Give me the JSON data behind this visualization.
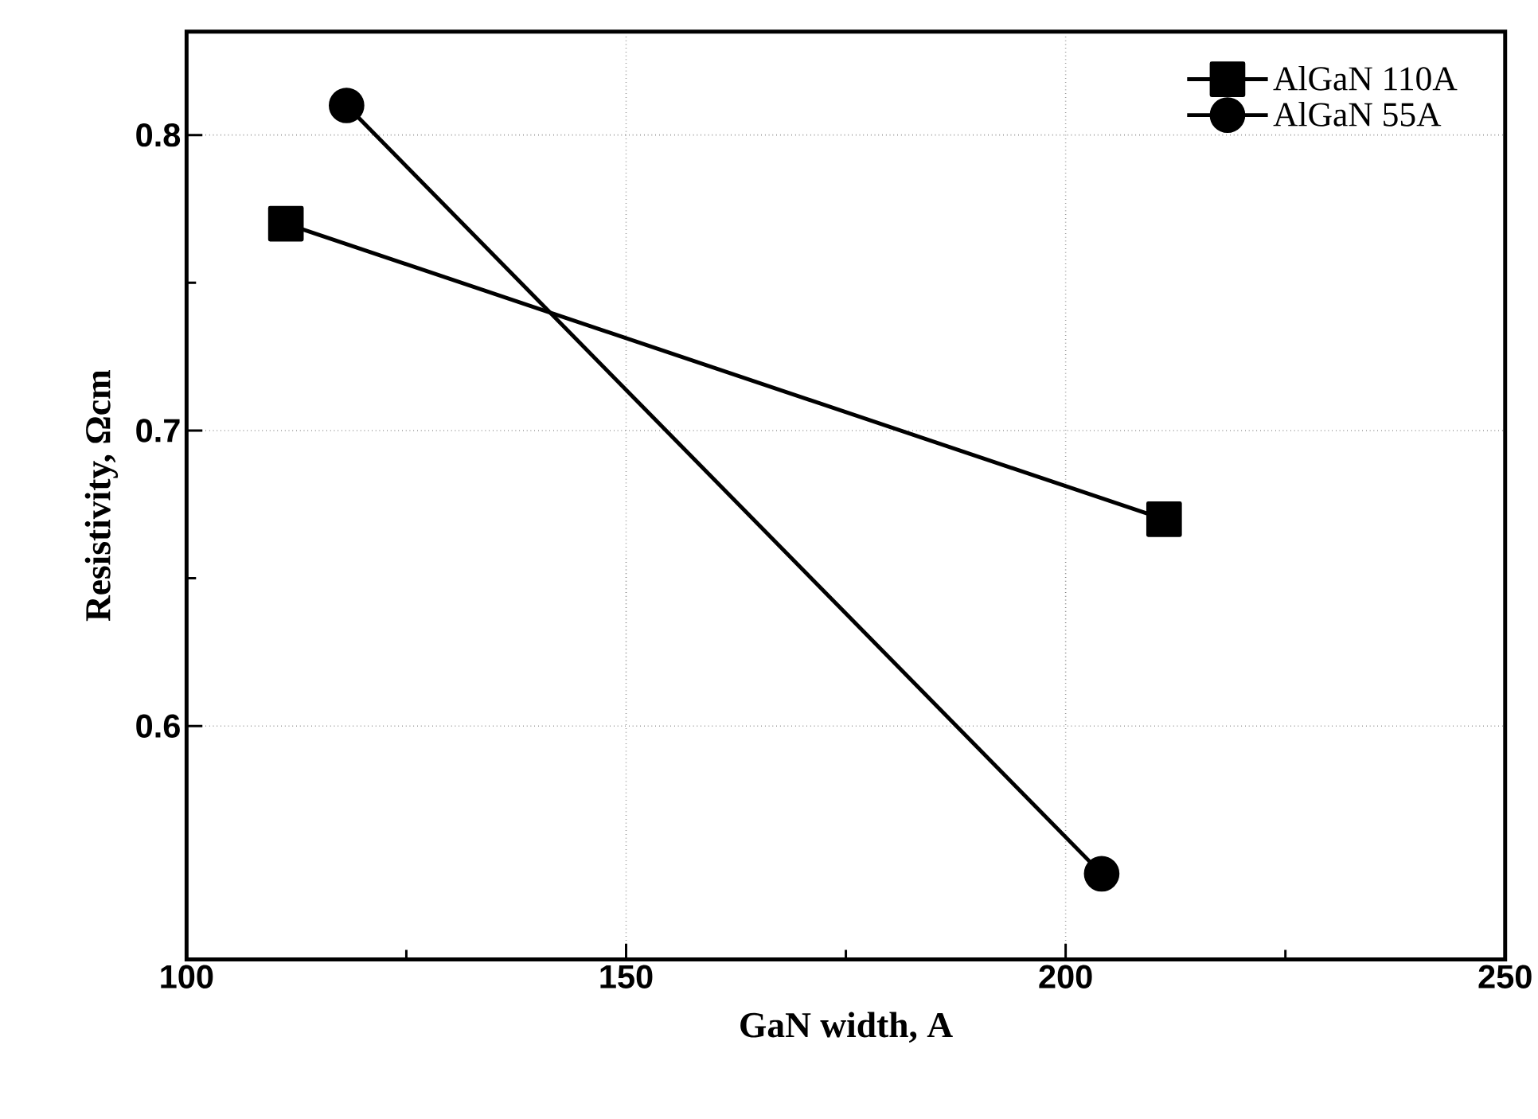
{
  "chart_data": {
    "type": "line",
    "xlabel": "GaN width, A",
    "ylabel": "Resistivity, Ωcm",
    "xlim": [
      100,
      250
    ],
    "ylim": [
      0.521,
      0.835
    ],
    "xticks": [
      100,
      150,
      200,
      250
    ],
    "yticks": [
      0.6,
      0.7,
      0.8
    ],
    "grid": true,
    "legend": "top right",
    "series": [
      {
        "name": "AlGaN 110A",
        "color": "#000000",
        "marker": "square",
        "x": [
          111.3,
          211.2
        ],
        "values": [
          0.77,
          0.67
        ]
      },
      {
        "name": "AlGaN 55A",
        "color": "#000000",
        "marker": "circle",
        "x": [
          118.2,
          204.1
        ],
        "values": [
          0.81,
          0.55
        ]
      }
    ]
  }
}
